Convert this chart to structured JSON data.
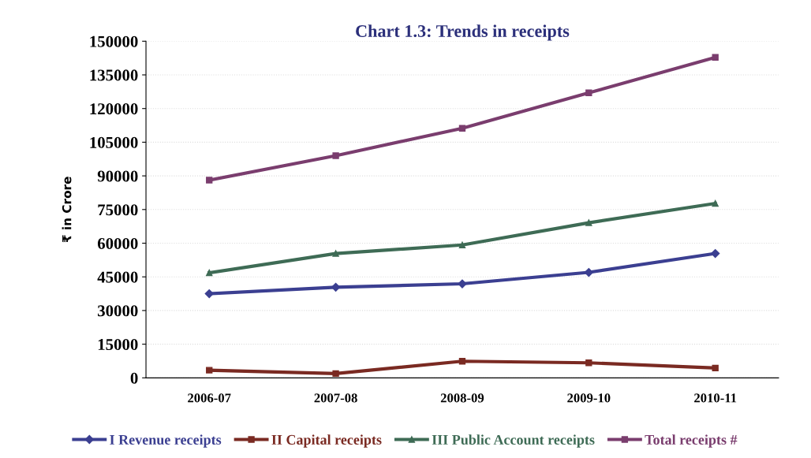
{
  "chart_data": {
    "type": "line",
    "title": "Chart 1.3: Trends in receipts",
    "ylabel": "₹ in Crore",
    "categories": [
      "2006-07",
      "2007-08",
      "2008-09",
      "2009-10",
      "2010-11"
    ],
    "series": [
      {
        "name": "I Revenue receipts",
        "color": "#3b3f91",
        "marker": "diamond",
        "values": [
          37500,
          40400,
          41900,
          47000,
          55400
        ]
      },
      {
        "name": "II Capital receipts",
        "color": "#7a2a22",
        "marker": "square",
        "values": [
          3400,
          1900,
          7400,
          6700,
          4400
        ]
      },
      {
        "name": "III Public Account receipts",
        "color": "#3e6b55",
        "marker": "triangle",
        "values": [
          46800,
          55400,
          59200,
          69100,
          77700
        ]
      },
      {
        "name": "Total receipts #",
        "color": "#7a3d6e",
        "marker": "square",
        "values": [
          88100,
          99000,
          111200,
          127000,
          142800
        ]
      }
    ],
    "ylim": [
      0,
      150000
    ],
    "yticks": [
      0,
      15000,
      30000,
      45000,
      60000,
      75000,
      90000,
      105000,
      120000,
      135000,
      150000
    ],
    "grid": "y",
    "legend": "bottom"
  }
}
